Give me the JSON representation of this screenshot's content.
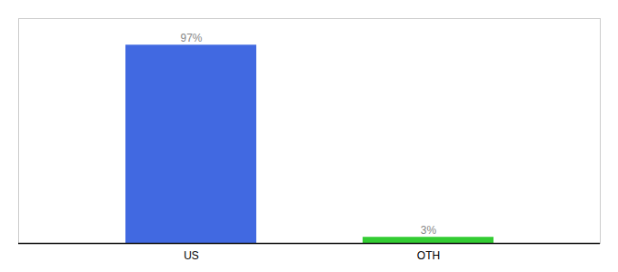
{
  "chart_data": {
    "type": "bar",
    "categories": [
      "US",
      "OTH"
    ],
    "values": [
      97,
      3
    ],
    "value_labels": [
      "97%",
      "3%"
    ],
    "colors": [
      "#4169E1",
      "#33CC33"
    ],
    "ylim": [
      0,
      110
    ],
    "data_labels": true,
    "tick_labels": "x",
    "grid": false
  }
}
